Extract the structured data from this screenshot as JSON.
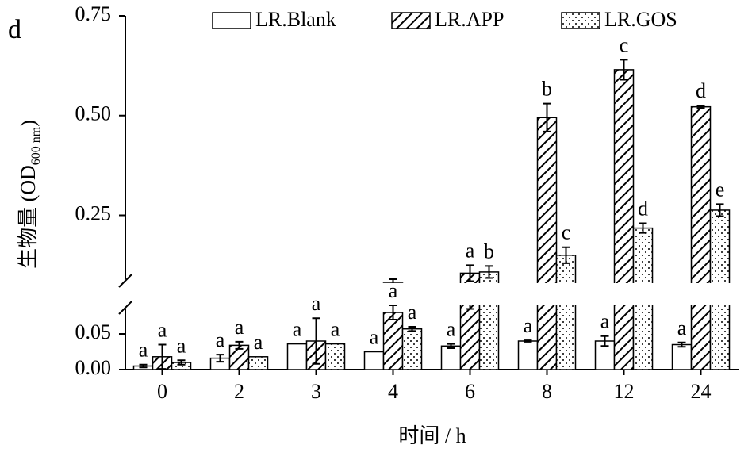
{
  "chart_data": {
    "type": "bar",
    "panel_letter": "d",
    "x_label": "时间 / h",
    "y_label": {
      "text": "生物量 (OD",
      "subscript": "600 nm",
      "suffix": ")"
    },
    "categories": [
      "0",
      "2",
      "3",
      "4",
      "6",
      "8",
      "12",
      "24"
    ],
    "series": [
      {
        "name": "LR.Blank",
        "pattern": "none",
        "color": "#000000",
        "values": [
          0.005,
          0.016,
          0.036,
          0.025,
          0.033,
          0.04,
          0.04,
          0.035
        ],
        "errors": [
          0.002,
          0.005,
          0,
          0,
          0.003,
          0.001,
          0.007,
          0.003
        ],
        "letters": [
          "a",
          "a",
          "a",
          "a",
          "a",
          "a",
          "a",
          "a"
        ]
      },
      {
        "name": "LR.APP",
        "pattern": "hatch",
        "color": "#000000",
        "values": [
          0.018,
          0.034,
          0.04,
          0.08,
          0.105,
          0.495,
          0.615,
          0.522
        ],
        "errors": [
          0.017,
          0.005,
          0.032,
          0.01,
          0.02,
          0.035,
          0.025,
          0.003
        ],
        "letters": [
          "a",
          "a",
          "a",
          "a",
          "a",
          "b",
          "c",
          "d"
        ]
      },
      {
        "name": "LR.GOS",
        "pattern": "dots",
        "color": "#000000",
        "values": [
          0.01,
          0.018,
          0.036,
          0.057,
          0.108,
          0.15,
          0.218,
          0.263
        ],
        "errors": [
          0.003,
          0,
          0,
          0.003,
          0.015,
          0.02,
          0.012,
          0.015
        ],
        "letters": [
          "a",
          "a",
          "a",
          "a",
          "b",
          "c",
          "d",
          "e"
        ]
      }
    ],
    "ylim_upper": [
      0.08,
      0.75
    ],
    "yticks_upper": [
      0.25,
      {
        "value": 0.5,
        "label": "0.50"
      },
      0.75
    ],
    "ylim_lower": [
      0,
      0.09
    ],
    "yticks_lower": [
      {
        "value": 0,
        "label": "0.00"
      },
      0.05
    ],
    "legend": "top"
  }
}
